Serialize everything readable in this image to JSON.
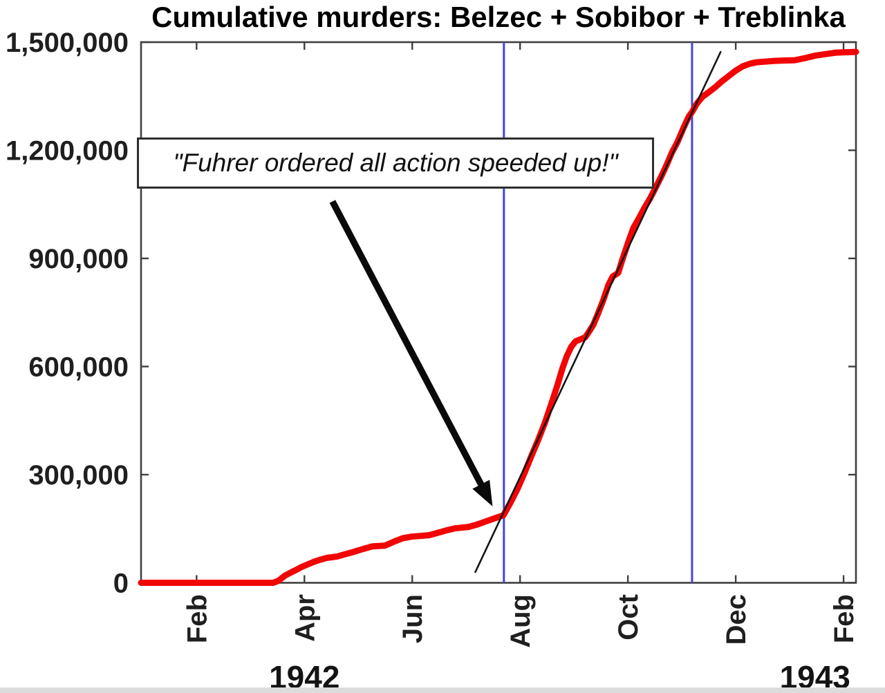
{
  "chart_data": {
    "type": "line",
    "title": "Cumulative murders: Belzec + Sobibor + Treblinka",
    "xlabel": "",
    "ylabel": "",
    "grid": false,
    "legend": "none",
    "x_unit": "months since Jan 1 1942 (0 = Jan 1942, 13 = Feb 1943)",
    "xlim": [
      -0.03,
      13.23
    ],
    "ylim": [
      0,
      1500000
    ],
    "x_ticks": [
      {
        "pos": 1,
        "label": "Feb"
      },
      {
        "pos": 3,
        "label": "Apr"
      },
      {
        "pos": 5,
        "label": "Jun"
      },
      {
        "pos": 7,
        "label": "Aug"
      },
      {
        "pos": 9,
        "label": "Oct"
      },
      {
        "pos": 11,
        "label": "Dec"
      },
      {
        "pos": 13,
        "label": "Feb"
      }
    ],
    "y_ticks": [
      {
        "value": 0,
        "label": "0"
      },
      {
        "value": 300000,
        "label": "300,000"
      },
      {
        "value": 600000,
        "label": "600,000"
      },
      {
        "value": 900000,
        "label": "900,000"
      },
      {
        "value": 1200000,
        "label": "1,200,000"
      },
      {
        "value": 1500000,
        "label": "1,500,000"
      }
    ],
    "year_labels": [
      {
        "x": 3.0,
        "label": "1942"
      },
      {
        "x": 12.47,
        "label": "1943"
      }
    ],
    "series": [
      {
        "name": "cumulative-murders",
        "color": "#f20505",
        "width": 9,
        "points": [
          [
            -0.03,
            0
          ],
          [
            2.42,
            0
          ],
          [
            2.51,
            5000
          ],
          [
            2.64,
            20000
          ],
          [
            2.74,
            28000
          ],
          [
            2.85,
            36000
          ],
          [
            2.95,
            44000
          ],
          [
            3.06,
            51000
          ],
          [
            3.19,
            59000
          ],
          [
            3.32,
            65000
          ],
          [
            3.41,
            69000
          ],
          [
            3.61,
            73000
          ],
          [
            3.77,
            80000
          ],
          [
            3.92,
            86000
          ],
          [
            4.09,
            94000
          ],
          [
            4.26,
            101000
          ],
          [
            4.49,
            103000
          ],
          [
            4.69,
            116000
          ],
          [
            4.83,
            124000
          ],
          [
            4.99,
            128000
          ],
          [
            5.31,
            132000
          ],
          [
            5.46,
            138000
          ],
          [
            5.62,
            145000
          ],
          [
            5.79,
            151000
          ],
          [
            6.05,
            155000
          ],
          [
            6.21,
            162000
          ],
          [
            6.36,
            170000
          ],
          [
            6.51,
            178000
          ],
          [
            6.69,
            187000
          ],
          [
            6.82,
            222000
          ],
          [
            6.95,
            260000
          ],
          [
            7.08,
            304000
          ],
          [
            7.21,
            352000
          ],
          [
            7.33,
            394000
          ],
          [
            7.46,
            444000
          ],
          [
            7.59,
            501000
          ],
          [
            7.69,
            547000
          ],
          [
            7.79,
            597000
          ],
          [
            7.87,
            630000
          ],
          [
            7.95,
            655000
          ],
          [
            8.03,
            670000
          ],
          [
            8.21,
            681000
          ],
          [
            8.28,
            697000
          ],
          [
            8.36,
            716000
          ],
          [
            8.44,
            745000
          ],
          [
            8.54,
            783000
          ],
          [
            8.64,
            827000
          ],
          [
            8.72,
            850000
          ],
          [
            8.82,
            860000
          ],
          [
            8.9,
            898000
          ],
          [
            9.0,
            942000
          ],
          [
            9.1,
            984000
          ],
          [
            9.21,
            1013000
          ],
          [
            9.31,
            1041000
          ],
          [
            9.41,
            1066000
          ],
          [
            9.51,
            1095000
          ],
          [
            9.62,
            1128000
          ],
          [
            9.72,
            1160000
          ],
          [
            9.82,
            1195000
          ],
          [
            9.92,
            1223000
          ],
          [
            10.03,
            1262000
          ],
          [
            10.13,
            1294000
          ],
          [
            10.19,
            1306000
          ],
          [
            10.28,
            1330000
          ],
          [
            10.38,
            1348000
          ],
          [
            10.49,
            1360000
          ],
          [
            10.62,
            1375000
          ],
          [
            10.74,
            1391000
          ],
          [
            10.87,
            1406000
          ],
          [
            11.0,
            1421000
          ],
          [
            11.13,
            1433000
          ],
          [
            11.26,
            1440000
          ],
          [
            11.38,
            1444000
          ],
          [
            11.72,
            1448000
          ],
          [
            12.1,
            1450000
          ],
          [
            12.29,
            1456000
          ],
          [
            12.49,
            1463000
          ],
          [
            12.68,
            1467000
          ],
          [
            12.87,
            1471000
          ],
          [
            13.23,
            1473000
          ]
        ]
      },
      {
        "name": "trend-line",
        "color": "#151515",
        "width": 2.6,
        "points": [
          [
            6.17,
            30000
          ],
          [
            10.72,
            1473000
          ]
        ]
      }
    ],
    "vlines": [
      {
        "name": "event-vline-1",
        "x": 6.7,
        "color": "#4444e0",
        "width": 3
      },
      {
        "name": "event-vline-2",
        "x": 10.19,
        "color": "#4444e0",
        "width": 3
      }
    ],
    "annotation": {
      "text": "\"Fuhrer ordered all action speeded up!\"",
      "arrow": {
        "from": [
          3.52,
          1058000
        ],
        "to": [
          6.49,
          212000
        ],
        "color": "#0a0a0a"
      }
    },
    "frame_color": "#3f3f3f",
    "tick_label_color": "#1f1f1f"
  }
}
